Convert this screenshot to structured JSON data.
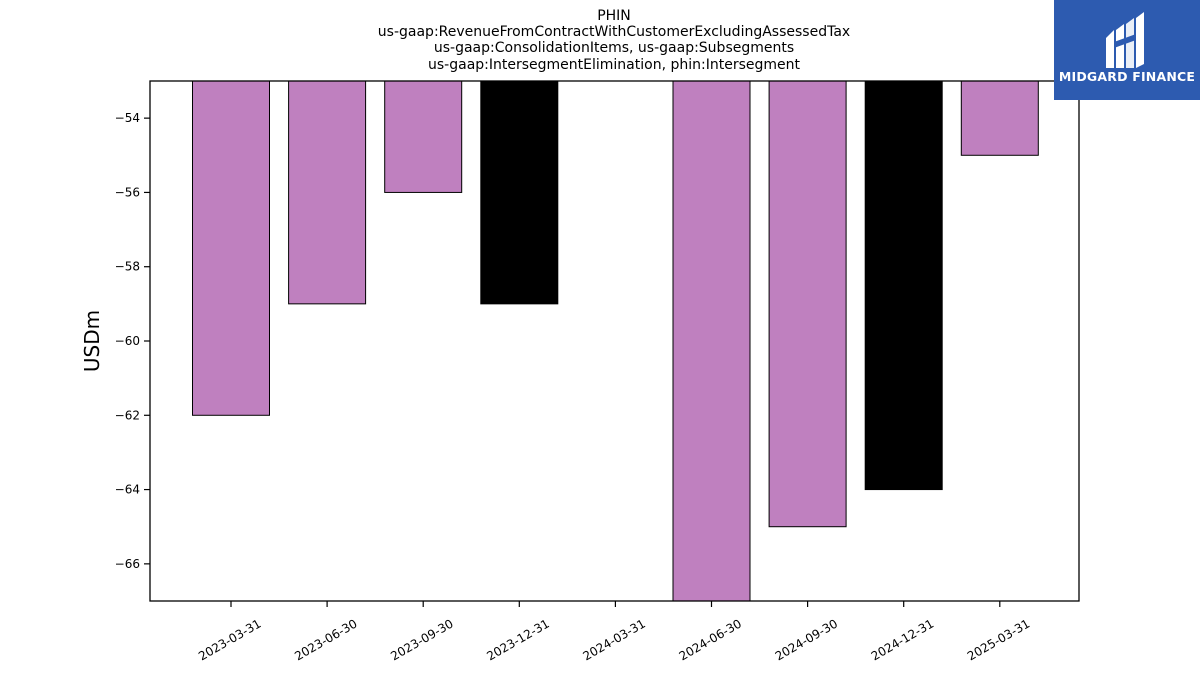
{
  "brand": {
    "name": "MIDGARD FINANCE",
    "bg_color": "#2d5bb0",
    "icon": "midgard-logo-icon"
  },
  "chart_data": {
    "type": "bar",
    "title_lines": [
      "PHIN",
      "us-gaap:RevenueFromContractWithCustomerExcludingAssessedTax",
      "us-gaap:ConsolidationItems, us-gaap:Subsegments",
      "us-gaap:IntersegmentElimination, phin:Intersegment"
    ],
    "ylabel": "USDm",
    "xlabel": "",
    "categories": [
      "2023-03-31",
      "2023-06-30",
      "2023-09-30",
      "2023-12-31",
      "2024-03-31",
      "2024-06-30",
      "2024-09-30",
      "2024-12-31",
      "2025-03-31"
    ],
    "values": [
      -62,
      -59,
      -56,
      -59,
      null,
      -67,
      -65,
      -64,
      -55
    ],
    "bar_colors": [
      "#bf80bf",
      "#bf80bf",
      "#bf80bf",
      "#000000",
      null,
      "#bf80bf",
      "#bf80bf",
      "#000000",
      "#bf80bf"
    ],
    "ylim": [
      -67,
      -53
    ],
    "yticks": [
      -54,
      -56,
      -58,
      -60,
      -62,
      -64,
      -66
    ],
    "ytick_labels": [
      "−54",
      "−56",
      "−58",
      "−60",
      "−62",
      "−64",
      "−66"
    ],
    "grid": false
  }
}
